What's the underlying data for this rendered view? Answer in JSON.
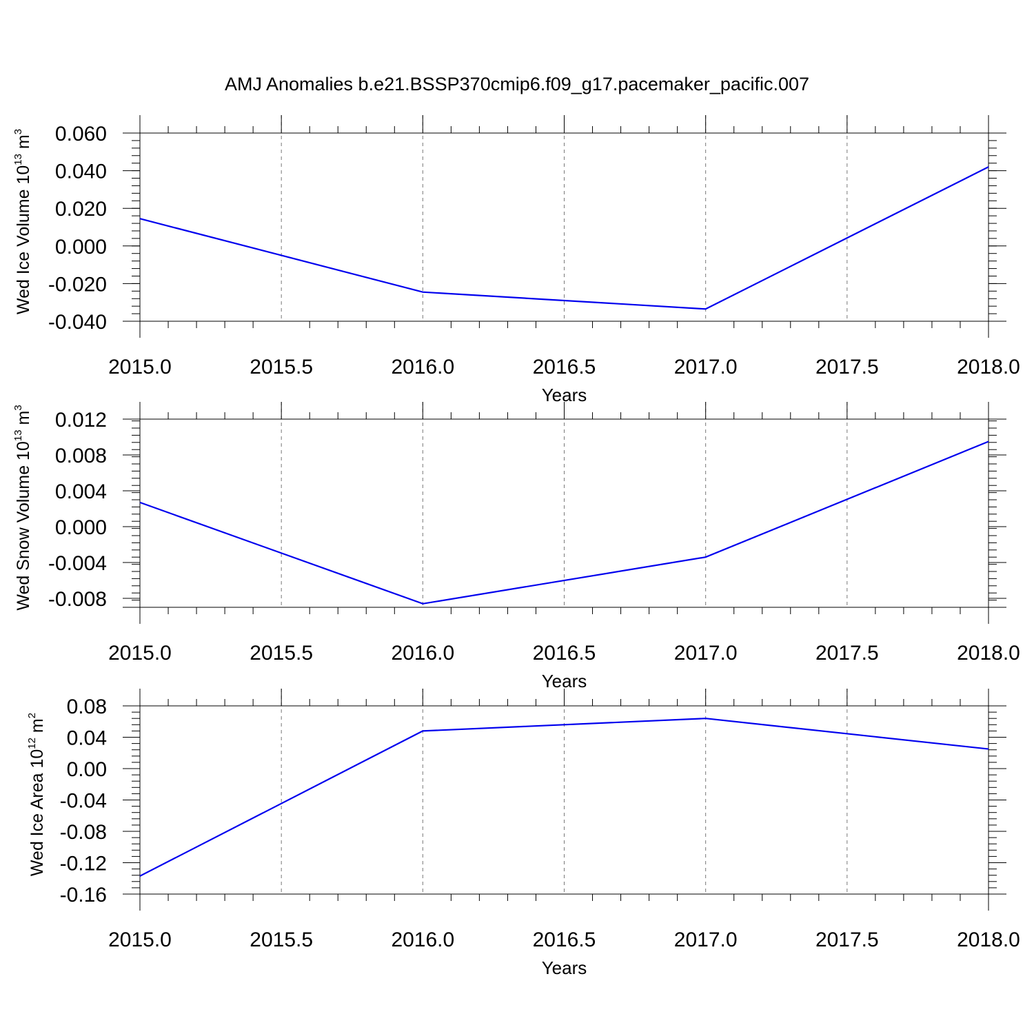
{
  "figure": {
    "title": "AMJ Anomalies b.e21.BSSP370cmip6.f09_g17.pacemaker_pacific.007",
    "line_color": "#0000ee",
    "grid_color": "#777777"
  },
  "chart_data": [
    {
      "type": "line",
      "ylabel": {
        "main": "Wed Ice Volume 10",
        "exp": "13",
        "unit": " m",
        "unit_exp": "3"
      },
      "xlabel": "Years",
      "x": [
        2015,
        2016,
        2017,
        2018
      ],
      "series": [
        {
          "values": [
            0.0145,
            -0.0245,
            -0.0335,
            0.042
          ]
        }
      ],
      "ylim": [
        -0.04,
        0.06
      ],
      "xlim": [
        2015,
        2018
      ],
      "yticks": [
        0.06,
        0.04,
        0.02,
        0.0,
        -0.02,
        -0.04
      ],
      "ytick_labels": [
        "0.060",
        "0.040",
        "0.020",
        "0.000",
        "-0.020",
        "-0.040"
      ],
      "xticks": [
        2015.0,
        2015.5,
        2016.0,
        2016.5,
        2017.0,
        2017.5,
        2018.0
      ],
      "xtick_labels": [
        "2015.0",
        "2015.5",
        "2016.0",
        "2016.5",
        "2017.0",
        "2017.5",
        "2018.0"
      ],
      "grid": "vertical-dashed"
    },
    {
      "type": "line",
      "ylabel": {
        "main": "Wed Snow Volume 10",
        "exp": "13",
        "unit": " m",
        "unit_exp": "3"
      },
      "xlabel": "Years",
      "x": [
        2015,
        2016,
        2017,
        2018
      ],
      "series": [
        {
          "values": [
            0.0027,
            -0.0086,
            -0.0034,
            0.0095
          ]
        }
      ],
      "ylim": [
        -0.009,
        0.012
      ],
      "xlim": [
        2015,
        2018
      ],
      "yticks": [
        0.012,
        0.008,
        0.004,
        0.0,
        -0.004,
        -0.008
      ],
      "ytick_labels": [
        "0.012",
        "0.008",
        "0.004",
        "0.000",
        "-0.004",
        "-0.008"
      ],
      "xticks": [
        2015.0,
        2015.5,
        2016.0,
        2016.5,
        2017.0,
        2017.5,
        2018.0
      ],
      "xtick_labels": [
        "2015.0",
        "2015.5",
        "2016.0",
        "2016.5",
        "2017.0",
        "2017.5",
        "2018.0"
      ],
      "grid": "vertical-dashed"
    },
    {
      "type": "line",
      "ylabel": {
        "main": "Wed Ice Area 10",
        "exp": "12",
        "unit": " m",
        "unit_exp": "2"
      },
      "xlabel": "Years",
      "x": [
        2015,
        2016,
        2017,
        2018
      ],
      "series": [
        {
          "values": [
            -0.137,
            0.048,
            0.064,
            0.025
          ]
        }
      ],
      "ylim": [
        -0.16,
        0.08
      ],
      "xlim": [
        2015,
        2018
      ],
      "yticks": [
        0.08,
        0.04,
        0.0,
        -0.04,
        -0.08,
        -0.12,
        -0.16
      ],
      "ytick_labels": [
        "0.08",
        "0.04",
        "0.00",
        "-0.04",
        "-0.08",
        "-0.12",
        "-0.16"
      ],
      "xticks": [
        2015.0,
        2015.5,
        2016.0,
        2016.5,
        2017.0,
        2017.5,
        2018.0
      ],
      "xtick_labels": [
        "2015.0",
        "2015.5",
        "2016.0",
        "2016.5",
        "2017.0",
        "2017.5",
        "2018.0"
      ],
      "grid": "vertical-dashed"
    }
  ]
}
